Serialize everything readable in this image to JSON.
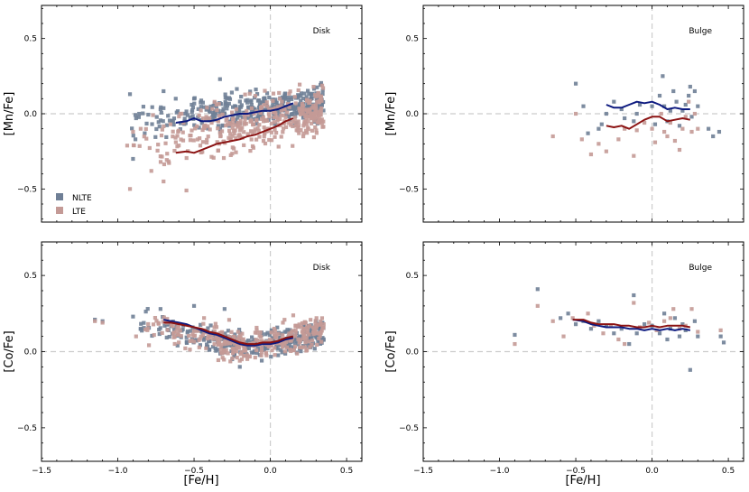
{
  "figure": {
    "xlabel": "[Fe/H]",
    "legend": {
      "items": [
        {
          "label": "NLTE",
          "color": "#6f7f96"
        },
        {
          "label": "LTE",
          "color": "#c49a96"
        }
      ],
      "placement": "lower-left (Disk, [Mn/Fe] panel)"
    }
  },
  "chart_data": [
    {
      "type": "scatter",
      "panel_label": "Disk",
      "ylabel": "[Mn/Fe]",
      "xlim": [
        -1.5,
        0.6
      ],
      "ylim": [
        -0.72,
        0.72
      ],
      "xticks": [
        "−1.5",
        "−1.0",
        "−0.5",
        "0.0",
        "0.5"
      ],
      "yticks": [
        "−0.5",
        "0.0",
        "0.5"
      ],
      "reference_lines": {
        "x": 0.0,
        "y": 0.0,
        "style": "dashed light gray"
      },
      "series": [
        {
          "name": "NLTE",
          "color": "#6f7f96",
          "cloud": {
            "x_range": [
              -0.95,
              0.35
            ],
            "y_at_start": -0.06,
            "y_at_end": 0.08,
            "scatter": 0.055,
            "count": 380
          },
          "extra_points": [
            [
              -0.92,
              0.13
            ],
            [
              -0.88,
              -0.03
            ],
            [
              -0.9,
              -0.3
            ],
            [
              -0.72,
              0.03
            ],
            [
              -0.7,
              0.15
            ],
            [
              -0.33,
              0.23
            ],
            [
              -0.62,
              0.1
            ],
            [
              -0.5,
              0.1
            ],
            [
              -0.86,
              0.0
            ]
          ]
        },
        {
          "name": "LTE",
          "color": "#c49a96",
          "cloud": {
            "x_range": [
              -0.95,
              0.35
            ],
            "y_at_start": -0.26,
            "y_at_end": 0.03,
            "scatter": 0.085,
            "count": 380
          },
          "extra_points": [
            [
              -0.92,
              -0.5
            ],
            [
              -0.9,
              -0.12
            ],
            [
              -0.78,
              -0.38
            ],
            [
              -0.7,
              -0.45
            ],
            [
              -0.55,
              -0.51
            ],
            [
              -0.85,
              -0.1
            ]
          ]
        }
      ],
      "trend_lines": [
        {
          "series": "NLTE",
          "color": "#0d1a80",
          "x": [
            -0.62,
            -0.55,
            -0.5,
            -0.45,
            -0.4,
            -0.35,
            -0.3,
            -0.25,
            -0.2,
            -0.15,
            -0.1,
            -0.05,
            0.0,
            0.05,
            0.1,
            0.15
          ],
          "y": [
            -0.06,
            -0.05,
            -0.03,
            -0.05,
            -0.05,
            -0.04,
            -0.02,
            -0.01,
            0.0,
            0.0,
            0.01,
            0.02,
            0.02,
            0.03,
            0.05,
            0.07
          ]
        },
        {
          "series": "LTE",
          "color": "#8b1212",
          "x": [
            -0.62,
            -0.55,
            -0.5,
            -0.45,
            -0.4,
            -0.35,
            -0.3,
            -0.25,
            -0.2,
            -0.15,
            -0.1,
            -0.05,
            0.0,
            0.05,
            0.1,
            0.15
          ],
          "y": [
            -0.26,
            -0.25,
            -0.26,
            -0.24,
            -0.22,
            -0.2,
            -0.19,
            -0.18,
            -0.17,
            -0.15,
            -0.14,
            -0.12,
            -0.1,
            -0.08,
            -0.05,
            -0.03
          ]
        }
      ]
    },
    {
      "type": "scatter",
      "panel_label": "Bulge",
      "ylabel": "[Mn/Fe]",
      "xlim": [
        -1.5,
        0.6
      ],
      "ylim": [
        -0.72,
        0.72
      ],
      "xticks": [
        "−1.5",
        "−1.0",
        "−0.5",
        "0.0",
        "0.5"
      ],
      "yticks": [
        "−0.5",
        "0.0",
        "0.5"
      ],
      "reference_lines": {
        "x": 0.0,
        "y": 0.0,
        "style": "dashed light gray"
      },
      "series": [
        {
          "name": "NLTE",
          "color": "#6f7f96",
          "points": [
            [
              -0.5,
              0.2
            ],
            [
              -0.45,
              0.05
            ],
            [
              -0.42,
              -0.13
            ],
            [
              -0.35,
              -0.1
            ],
            [
              -0.33,
              -0.07
            ],
            [
              -0.3,
              0.0
            ],
            [
              -0.25,
              0.08
            ],
            [
              -0.2,
              0.03
            ],
            [
              -0.18,
              -0.03
            ],
            [
              -0.12,
              -0.05
            ],
            [
              -0.1,
              0.0
            ],
            [
              -0.08,
              0.06
            ],
            [
              0.0,
              0.05
            ],
            [
              0.02,
              -0.07
            ],
            [
              0.05,
              0.12
            ],
            [
              0.07,
              0.25
            ],
            [
              0.08,
              0.05
            ],
            [
              0.1,
              -0.05
            ],
            [
              0.12,
              0.02
            ],
            [
              0.14,
              0.15
            ],
            [
              0.16,
              0.08
            ],
            [
              0.18,
              -0.08
            ],
            [
              0.2,
              0.02
            ],
            [
              0.22,
              0.06
            ],
            [
              0.24,
              0.12
            ],
            [
              0.25,
              0.18
            ],
            [
              0.26,
              -0.02
            ],
            [
              0.28,
              0.15
            ],
            [
              0.3,
              0.05
            ],
            [
              0.37,
              -0.1
            ],
            [
              0.4,
              -0.15
            ],
            [
              0.44,
              -0.12
            ]
          ]
        },
        {
          "name": "LTE",
          "color": "#c49a96",
          "points": [
            [
              -0.65,
              -0.15
            ],
            [
              -0.5,
              0.0
            ],
            [
              -0.46,
              -0.17
            ],
            [
              -0.4,
              -0.27
            ],
            [
              -0.35,
              -0.2
            ],
            [
              -0.3,
              -0.25
            ],
            [
              -0.22,
              -0.17
            ],
            [
              -0.18,
              -0.1
            ],
            [
              -0.12,
              -0.28
            ],
            [
              -0.1,
              -0.11
            ],
            [
              -0.05,
              -0.06
            ],
            [
              0.0,
              -0.1
            ],
            [
              0.02,
              -0.19
            ],
            [
              0.06,
              0.0
            ],
            [
              0.08,
              -0.12
            ],
            [
              0.1,
              -0.15
            ],
            [
              0.12,
              -0.06
            ],
            [
              0.15,
              -0.18
            ],
            [
              0.18,
              -0.24
            ],
            [
              0.2,
              -0.1
            ],
            [
              0.22,
              -0.02
            ],
            [
              0.24,
              0.08
            ],
            [
              0.26,
              -0.12
            ],
            [
              0.28,
              0.0
            ],
            [
              0.3,
              -0.1
            ]
          ]
        }
      ],
      "trend_lines": [
        {
          "series": "NLTE",
          "color": "#0d1a80",
          "x": [
            -0.3,
            -0.25,
            -0.2,
            -0.15,
            -0.1,
            -0.05,
            0.0,
            0.05,
            0.1,
            0.15,
            0.2,
            0.25
          ],
          "y": [
            0.06,
            0.04,
            0.04,
            0.06,
            0.08,
            0.07,
            0.08,
            0.06,
            0.03,
            0.04,
            0.03,
            0.03
          ]
        },
        {
          "series": "LTE",
          "color": "#8b1212",
          "x": [
            -0.3,
            -0.25,
            -0.2,
            -0.15,
            -0.1,
            -0.05,
            0.0,
            0.05,
            0.1,
            0.15,
            0.2,
            0.25
          ],
          "y": [
            -0.08,
            -0.09,
            -0.08,
            -0.1,
            -0.07,
            -0.04,
            -0.02,
            -0.02,
            -0.05,
            -0.04,
            -0.03,
            -0.04
          ]
        }
      ]
    },
    {
      "type": "scatter",
      "panel_label": "Disk",
      "ylabel": "[Co/Fe]",
      "xlim": [
        -1.5,
        0.6
      ],
      "ylim": [
        -0.72,
        0.72
      ],
      "xticks": [
        "−1.5",
        "−1.0",
        "−0.5",
        "0.0",
        "0.5"
      ],
      "yticks": [
        "−0.5",
        "0.0",
        "0.5"
      ],
      "reference_lines": {
        "x": 0.0,
        "y": 0.0,
        "style": "dashed light gray"
      },
      "series": [
        {
          "name": "NLTE",
          "color": "#6f7f96",
          "cloud": {
            "x_range": [
              -0.9,
              0.35
            ],
            "y_at_start": 0.2,
            "y_at_end": 0.12,
            "y_at_mid": 0.03,
            "mid_x": -0.15,
            "scatter": 0.045,
            "count": 320
          },
          "extra_points": [
            [
              -1.15,
              0.21
            ],
            [
              -1.1,
              0.2
            ],
            [
              -0.9,
              0.23
            ],
            [
              -0.85,
              0.15
            ],
            [
              -0.72,
              0.28
            ],
            [
              -0.5,
              0.3
            ],
            [
              -0.3,
              0.28
            ],
            [
              -0.25,
              -0.05
            ],
            [
              -0.2,
              -0.1
            ],
            [
              0.3,
              0.2
            ]
          ]
        },
        {
          "name": "LTE",
          "color": "#c49a96",
          "cloud": {
            "x_range": [
              -0.9,
              0.35
            ],
            "y_at_start": 0.18,
            "y_at_end": 0.14,
            "y_at_mid": 0.04,
            "mid_x": -0.15,
            "scatter": 0.05,
            "count": 320
          },
          "extra_points": [
            [
              -1.15,
              0.2
            ],
            [
              -1.1,
              0.19
            ],
            [
              -0.88,
              0.1
            ],
            [
              -0.6,
              0.06
            ],
            [
              -0.2,
              -0.06
            ],
            [
              0.35,
              0.18
            ]
          ]
        }
      ],
      "trend_lines": [
        {
          "series": "NLTE",
          "color": "#0d1a80",
          "x": [
            -0.7,
            -0.65,
            -0.6,
            -0.55,
            -0.5,
            -0.45,
            -0.4,
            -0.35,
            -0.3,
            -0.25,
            -0.2,
            -0.15,
            -0.1,
            -0.05,
            0.0,
            0.05,
            0.1,
            0.15
          ],
          "y": [
            0.21,
            0.2,
            0.19,
            0.18,
            0.16,
            0.14,
            0.12,
            0.11,
            0.09,
            0.07,
            0.05,
            0.04,
            0.04,
            0.05,
            0.05,
            0.06,
            0.08,
            0.09
          ]
        },
        {
          "series": "LTE",
          "color": "#8b1212",
          "x": [
            -0.7,
            -0.65,
            -0.6,
            -0.55,
            -0.5,
            -0.45,
            -0.4,
            -0.35,
            -0.3,
            -0.25,
            -0.2,
            -0.15,
            -0.1,
            -0.05,
            0.0,
            0.05,
            0.1,
            0.15
          ],
          "y": [
            0.19,
            0.19,
            0.18,
            0.17,
            0.16,
            0.15,
            0.13,
            0.12,
            0.1,
            0.08,
            0.06,
            0.05,
            0.05,
            0.06,
            0.06,
            0.07,
            0.09,
            0.1
          ]
        }
      ]
    },
    {
      "type": "scatter",
      "panel_label": "Bulge",
      "ylabel": "[Co/Fe]",
      "xlim": [
        -1.5,
        0.6
      ],
      "ylim": [
        -0.72,
        0.72
      ],
      "xticks": [
        "−1.5",
        "−1.0",
        "−0.5",
        "0.0",
        "0.5"
      ],
      "yticks": [
        "−0.5",
        "0.0",
        "0.5"
      ],
      "reference_lines": {
        "x": 0.0,
        "y": 0.0,
        "style": "dashed light gray"
      },
      "series": [
        {
          "name": "NLTE",
          "color": "#6f7f96",
          "points": [
            [
              -0.9,
              0.11
            ],
            [
              -0.75,
              0.41
            ],
            [
              -0.6,
              0.22
            ],
            [
              -0.55,
              0.25
            ],
            [
              -0.5,
              0.18
            ],
            [
              -0.45,
              0.2
            ],
            [
              -0.4,
              0.15
            ],
            [
              -0.35,
              0.2
            ],
            [
              -0.3,
              0.17
            ],
            [
              -0.25,
              0.12
            ],
            [
              -0.2,
              0.15
            ],
            [
              -0.15,
              0.05
            ],
            [
              -0.12,
              0.37
            ],
            [
              -0.1,
              0.12
            ],
            [
              -0.05,
              0.18
            ],
            [
              0.0,
              0.17
            ],
            [
              0.05,
              0.12
            ],
            [
              0.08,
              0.25
            ],
            [
              0.1,
              0.08
            ],
            [
              0.12,
              0.15
            ],
            [
              0.15,
              0.22
            ],
            [
              0.18,
              0.1
            ],
            [
              0.2,
              0.18
            ],
            [
              0.22,
              0.14
            ],
            [
              0.25,
              -0.12
            ],
            [
              0.28,
              0.2
            ],
            [
              0.3,
              0.1
            ],
            [
              0.45,
              0.1
            ],
            [
              0.47,
              0.06
            ]
          ]
        },
        {
          "name": "LTE",
          "color": "#c49a96",
          "points": [
            [
              -0.9,
              0.05
            ],
            [
              -0.75,
              0.3
            ],
            [
              -0.65,
              0.2
            ],
            [
              -0.58,
              0.1
            ],
            [
              -0.52,
              0.22
            ],
            [
              -0.42,
              0.25
            ],
            [
              -0.38,
              0.17
            ],
            [
              -0.32,
              0.12
            ],
            [
              -0.27,
              0.17
            ],
            [
              -0.22,
              0.08
            ],
            [
              -0.18,
              0.05
            ],
            [
              -0.12,
              0.32
            ],
            [
              -0.08,
              0.16
            ],
            [
              -0.02,
              0.19
            ],
            [
              0.03,
              0.14
            ],
            [
              0.08,
              0.2
            ],
            [
              0.12,
              0.22
            ],
            [
              0.14,
              0.28
            ],
            [
              0.18,
              0.15
            ],
            [
              0.22,
              0.17
            ],
            [
              0.26,
              0.28
            ],
            [
              0.3,
              0.13
            ],
            [
              0.45,
              0.14
            ]
          ]
        }
      ],
      "trend_lines": [
        {
          "series": "NLTE",
          "color": "#0d1a80",
          "x": [
            -0.52,
            -0.45,
            -0.4,
            -0.35,
            -0.3,
            -0.25,
            -0.2,
            -0.15,
            -0.1,
            -0.05,
            0.0,
            0.05,
            0.1,
            0.15,
            0.2,
            0.25
          ],
          "y": [
            0.21,
            0.2,
            0.18,
            0.17,
            0.16,
            0.16,
            0.16,
            0.15,
            0.15,
            0.14,
            0.15,
            0.14,
            0.15,
            0.14,
            0.15,
            0.14
          ]
        },
        {
          "series": "LTE",
          "color": "#8b1212",
          "x": [
            -0.52,
            -0.45,
            -0.4,
            -0.35,
            -0.3,
            -0.25,
            -0.2,
            -0.15,
            -0.1,
            -0.05,
            0.0,
            0.05,
            0.1,
            0.15,
            0.2,
            0.25
          ],
          "y": [
            0.21,
            0.21,
            0.19,
            0.18,
            0.18,
            0.18,
            0.17,
            0.17,
            0.16,
            0.16,
            0.17,
            0.16,
            0.17,
            0.17,
            0.17,
            0.16
          ]
        }
      ]
    }
  ]
}
